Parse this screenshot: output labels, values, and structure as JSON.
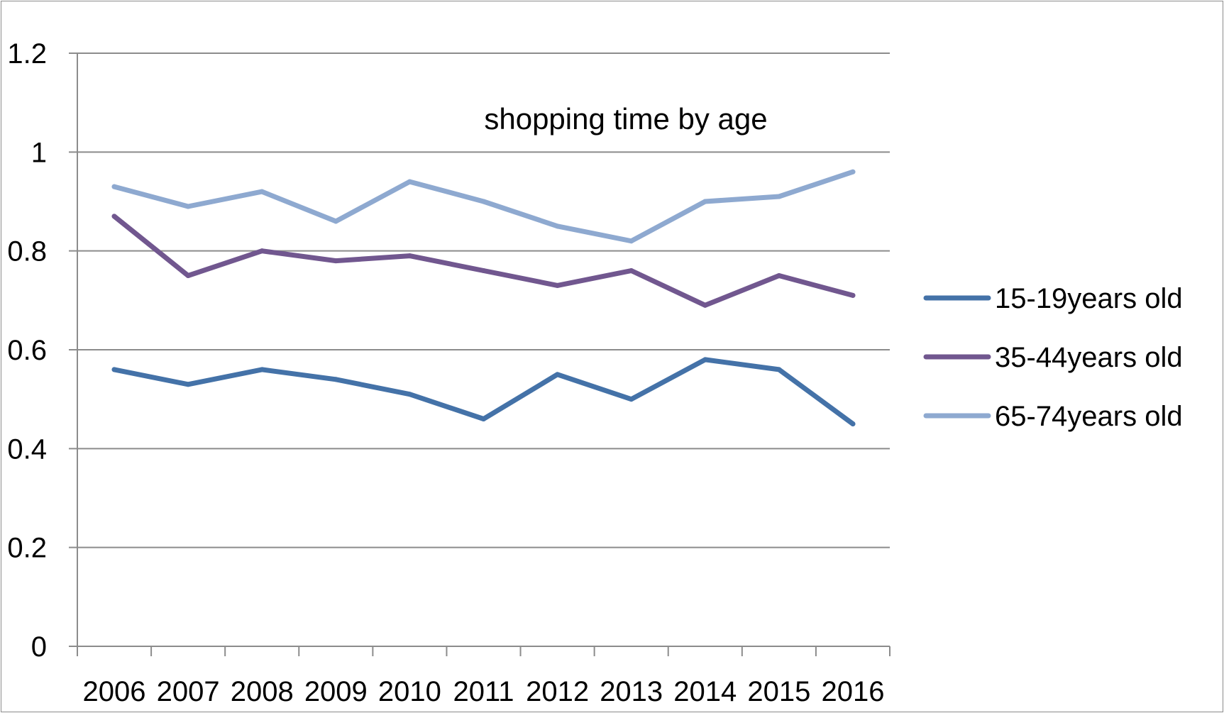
{
  "chart_data": {
    "type": "line",
    "title": "shopping time by age",
    "xlabel": "",
    "ylabel": "",
    "categories": [
      "2006",
      "2007",
      "2008",
      "2009",
      "2010",
      "2011",
      "2012",
      "2013",
      "2014",
      "2015",
      "2016"
    ],
    "ylim": [
      0,
      1.2
    ],
    "yticks": [
      "0",
      "0.2",
      "0.4",
      "0.6",
      "0.8",
      "1",
      "1.2"
    ],
    "grid": true,
    "legend_position": "right",
    "series": [
      {
        "name": "15-19years old",
        "color": "#4472a8",
        "values": [
          0.56,
          0.53,
          0.56,
          0.54,
          0.51,
          0.46,
          0.55,
          0.5,
          0.58,
          0.56,
          0.45
        ]
      },
      {
        "name": "35-44years old",
        "color": "#71578f",
        "values": [
          0.87,
          0.75,
          0.8,
          0.78,
          0.79,
          0.76,
          0.73,
          0.76,
          0.69,
          0.75,
          0.71
        ]
      },
      {
        "name": "65-74years old",
        "color": "#8ea9d0",
        "values": [
          0.93,
          0.89,
          0.92,
          0.86,
          0.94,
          0.9,
          0.85,
          0.82,
          0.9,
          0.91,
          0.96
        ]
      }
    ]
  }
}
